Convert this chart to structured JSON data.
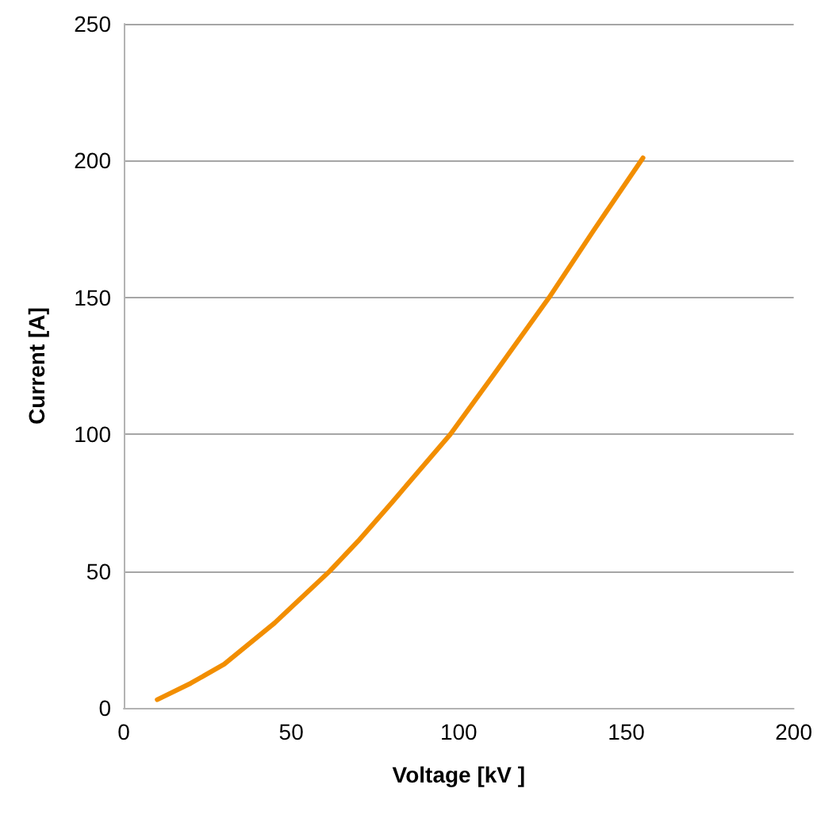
{
  "chart_data": {
    "type": "line",
    "xlabel": "Voltage [kV ]",
    "ylabel": "Current [A]",
    "x": [
      10,
      20,
      30,
      45,
      61.5,
      70,
      80,
      97.5,
      110,
      127,
      140,
      155
    ],
    "series": [
      {
        "color": "#f28e00",
        "values": [
          3,
          9,
          16,
          31,
          50,
          61,
          75,
          100,
          121,
          150,
          174,
          201
        ]
      }
    ],
    "xlim": [
      0,
      200
    ],
    "xticks": [
      0,
      50,
      100,
      150,
      200
    ],
    "ylim": [
      0,
      250
    ],
    "yticks": [
      0,
      50,
      100,
      150,
      200,
      250
    ],
    "grid": "y",
    "marker": "none",
    "line_style": "solid"
  }
}
